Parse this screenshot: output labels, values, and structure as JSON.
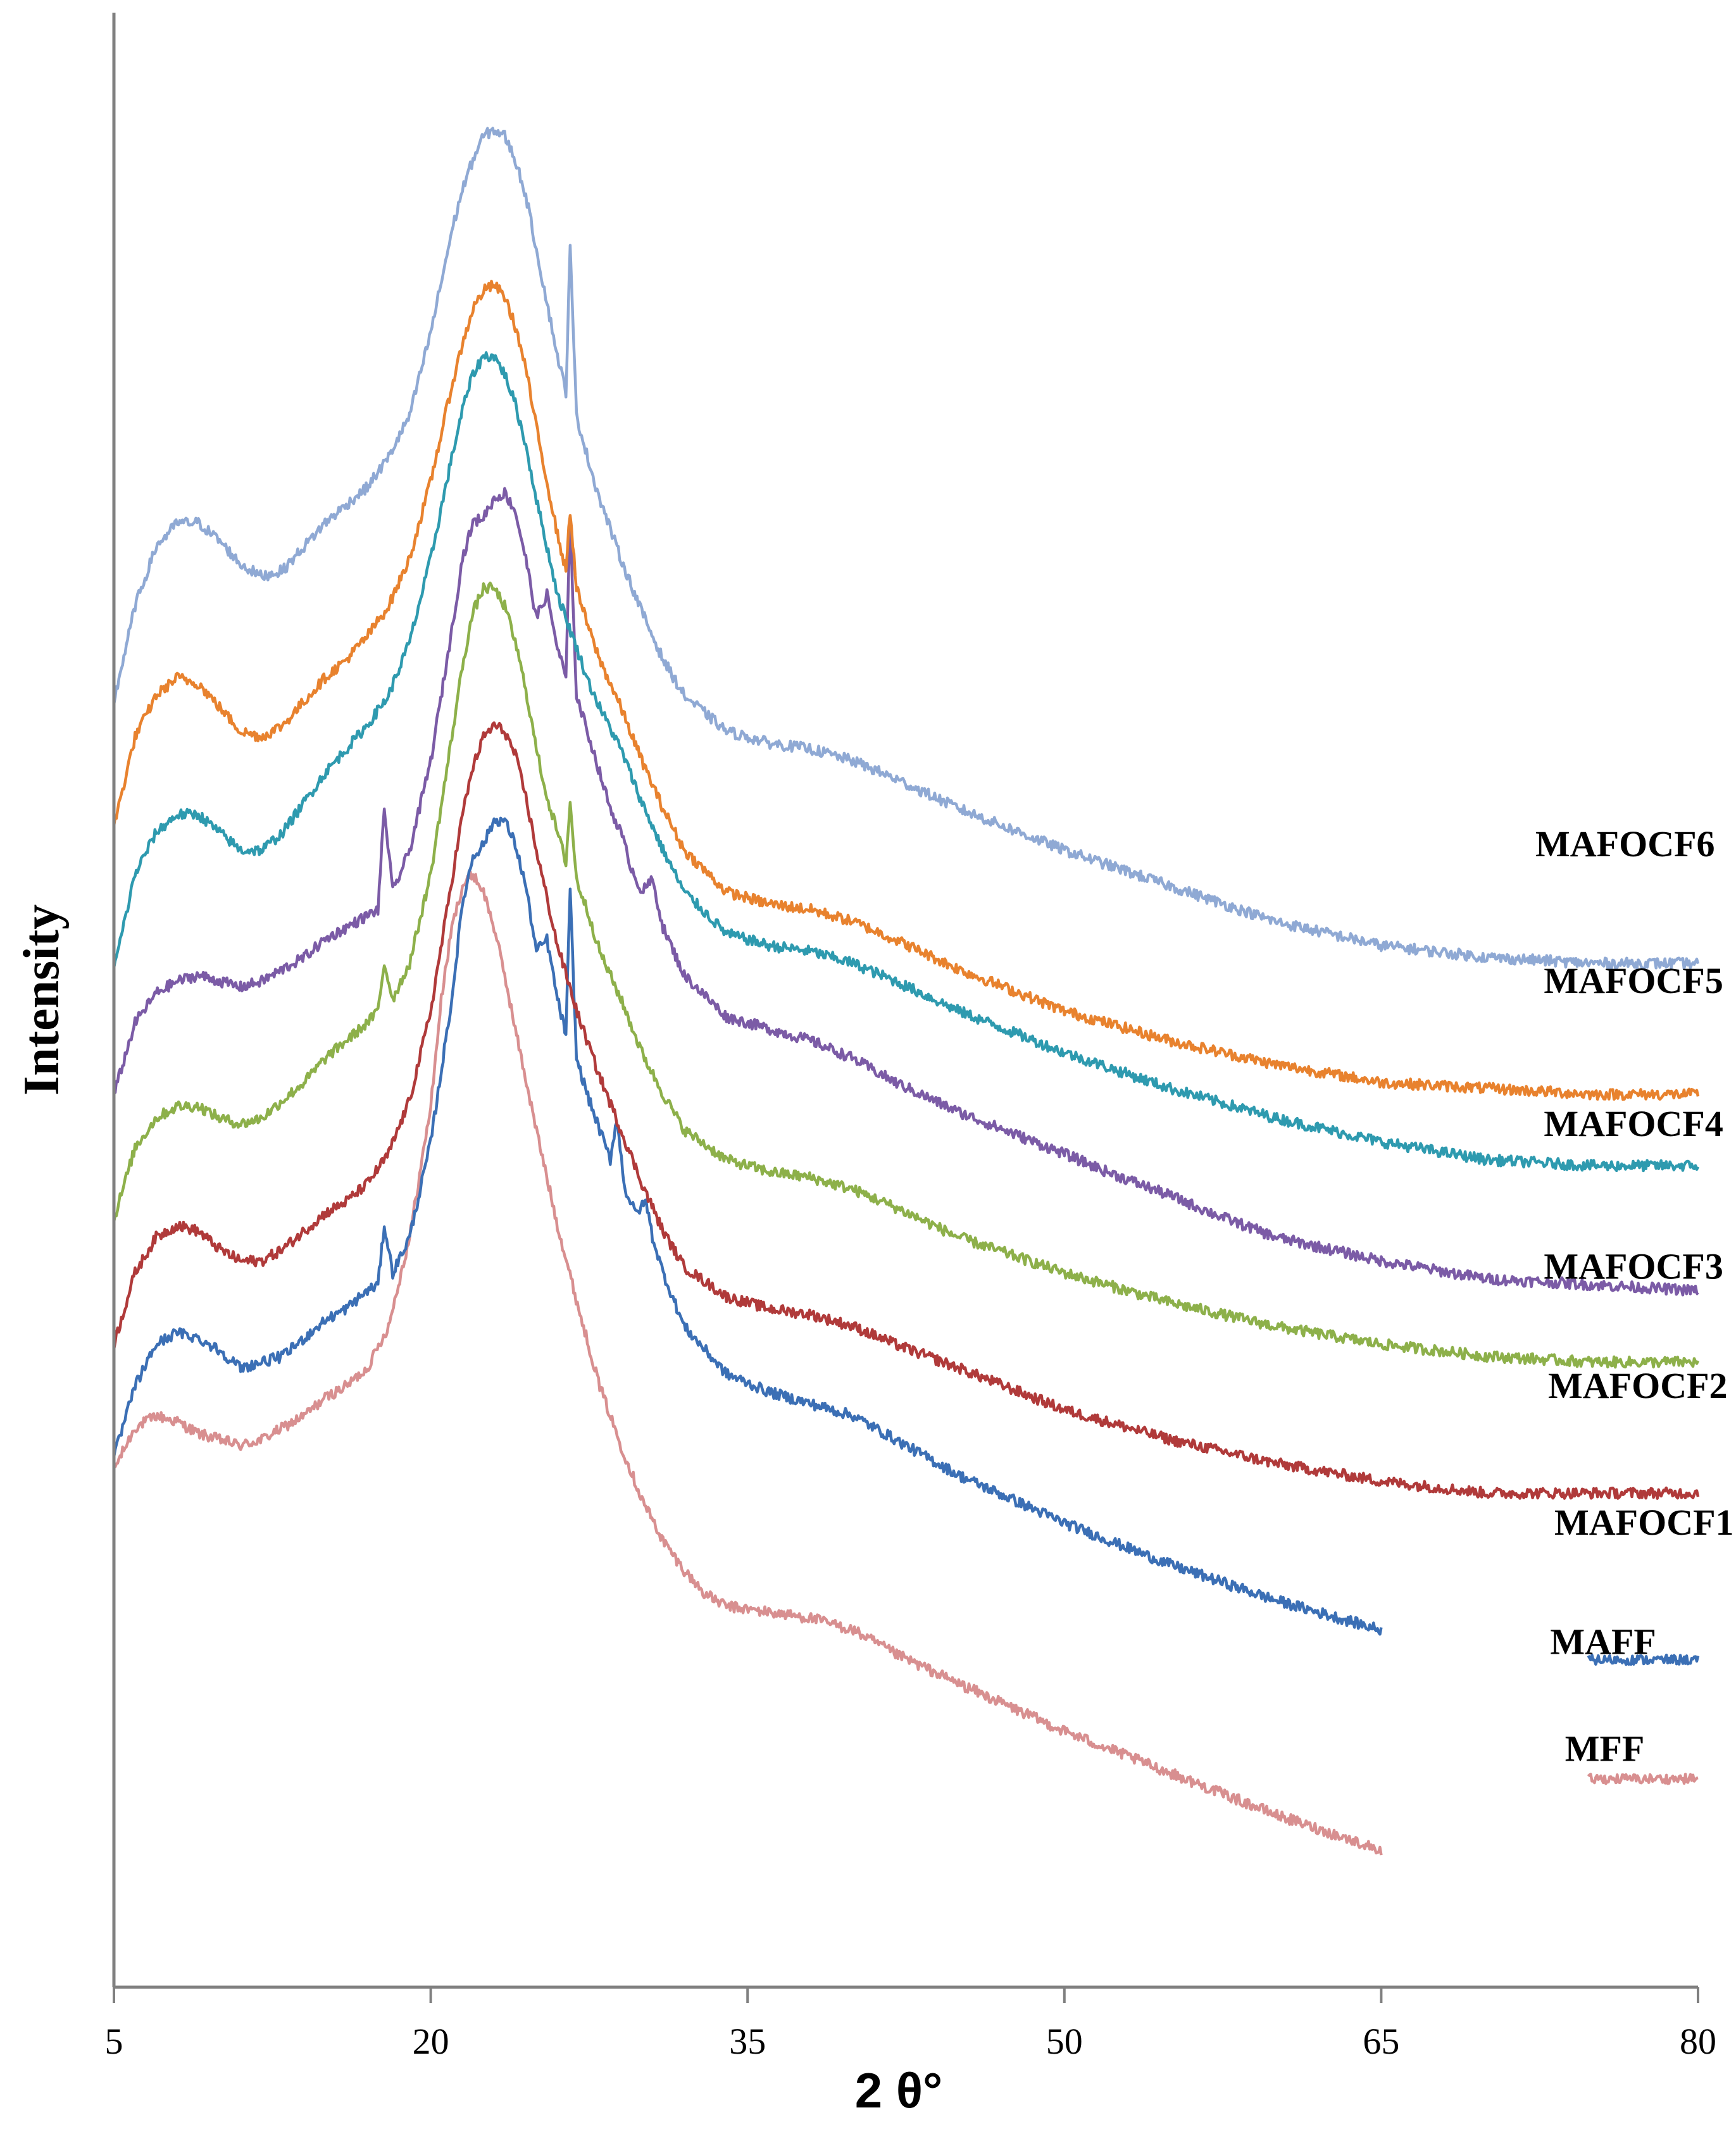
{
  "chart_data": {
    "type": "line",
    "title": "",
    "xlabel": "2 θ°",
    "ylabel": "Intensity",
    "xlim": [
      5,
      80
    ],
    "xticks": [
      "5",
      "20",
      "35",
      "50",
      "65",
      "80"
    ],
    "grid": false,
    "legend": "inline labels at right",
    "y_units": "arbitrary (stacked, offset traces)",
    "series": [
      {
        "name": "MAFOCF6",
        "color": "#8FA9D4",
        "x": [
          5,
          6,
          7,
          8,
          9,
          10,
          11,
          12,
          13,
          14,
          15,
          16,
          17,
          18,
          19,
          20,
          21,
          21.5,
          22,
          22.5,
          23,
          23.5,
          24,
          24.5,
          25,
          25.5,
          26,
          26.4,
          26.6,
          26.9,
          27.5,
          28,
          29,
          30,
          31,
          32,
          34,
          36,
          38,
          40,
          42,
          45,
          50,
          55,
          60,
          65,
          70,
          75,
          80
        ],
        "y": [
          6.8,
          7.6,
          8.1,
          8.3,
          8.3,
          8.15,
          7.95,
          7.85,
          7.9,
          8.1,
          8.3,
          8.45,
          8.6,
          8.85,
          9.2,
          9.9,
          10.75,
          11.1,
          11.35,
          11.55,
          11.6,
          11.55,
          11.35,
          11.05,
          10.6,
          10.15,
          9.7,
          9.4,
          10.6,
          9.2,
          8.8,
          8.5,
          8.0,
          7.55,
          7.15,
          6.85,
          6.55,
          6.45,
          6.4,
          6.3,
          6.15,
          5.9,
          5.55,
          5.25,
          4.95,
          4.75,
          4.65,
          4.6,
          4.6
        ]
      },
      {
        "name": "MAFOCF5",
        "color": "#E8822E",
        "x": [
          5,
          6,
          7,
          8,
          9,
          10,
          11,
          12,
          13,
          14,
          15,
          16,
          17,
          18,
          19,
          20,
          21,
          21.5,
          22,
          22.5,
          23,
          23.5,
          24,
          24.5,
          25,
          25.5,
          26,
          26.4,
          26.6,
          26.9,
          27.5,
          28,
          29,
          30,
          31,
          32,
          34,
          36,
          38,
          40,
          42,
          45,
          50,
          55,
          60,
          65,
          70,
          75,
          80
        ],
        "y": [
          5.75,
          6.5,
          6.85,
          7.0,
          6.95,
          6.75,
          6.55,
          6.5,
          6.6,
          6.8,
          7.0,
          7.15,
          7.35,
          7.6,
          8.0,
          8.65,
          9.45,
          9.8,
          10.1,
          10.25,
          10.3,
          10.2,
          9.95,
          9.6,
          9.1,
          8.65,
          8.2,
          7.9,
          8.4,
          7.75,
          7.4,
          7.15,
          6.75,
          6.3,
          5.9,
          5.55,
          5.2,
          5.1,
          5.05,
          4.95,
          4.8,
          4.55,
          4.2,
          3.95,
          3.75,
          3.6,
          3.55,
          3.5,
          3.5
        ]
      },
      {
        "name": "MAFOCF4",
        "color": "#2E9AAF",
        "x": [
          5,
          6,
          7,
          8,
          9,
          10,
          11,
          12,
          13,
          14,
          15,
          16,
          17,
          18,
          19,
          20,
          21,
          21.5,
          22,
          22.5,
          23,
          23.5,
          24,
          24.5,
          25,
          25.5,
          26,
          26.5,
          27,
          27.5,
          28,
          29,
          30,
          31,
          32,
          34,
          36,
          38,
          40,
          42,
          45,
          50,
          55,
          60,
          65,
          70,
          75,
          80
        ],
        "y": [
          4.55,
          5.35,
          5.7,
          5.85,
          5.85,
          5.7,
          5.55,
          5.55,
          5.7,
          5.95,
          6.2,
          6.4,
          6.6,
          6.85,
          7.3,
          8.0,
          8.85,
          9.25,
          9.55,
          9.7,
          9.7,
          9.55,
          9.3,
          8.95,
          8.5,
          8.1,
          7.7,
          7.45,
          7.2,
          6.95,
          6.75,
          6.4,
          5.95,
          5.55,
          5.2,
          4.85,
          4.75,
          4.7,
          4.6,
          4.45,
          4.2,
          3.85,
          3.55,
          3.3,
          3.1,
          2.95,
          2.9,
          2.9
        ]
      },
      {
        "name": "MAFOCF3",
        "color": "#7B5BA6",
        "x": [
          5,
          6,
          7,
          8,
          9,
          10,
          11,
          12,
          13,
          14,
          15,
          16,
          17,
          17.5,
          17.8,
          18.2,
          19,
          20,
          21,
          21.5,
          22,
          22.5,
          23,
          23.5,
          24,
          24.5,
          25,
          25.5,
          26,
          26.4,
          26.6,
          26.9,
          27.5,
          28,
          28.5,
          29,
          29.5,
          30,
          30.5,
          31,
          32,
          34,
          36,
          38,
          40,
          42,
          45,
          50,
          52,
          55,
          57,
          60,
          65,
          70,
          75,
          80
        ],
        "y": [
          3.5,
          4.1,
          4.35,
          4.45,
          4.5,
          4.45,
          4.4,
          4.45,
          4.55,
          4.65,
          4.8,
          4.9,
          5.0,
          5.05,
          5.9,
          5.2,
          5.55,
          6.3,
          7.4,
          8.0,
          8.3,
          8.35,
          8.5,
          8.55,
          8.4,
          8.0,
          7.5,
          7.7,
          7.25,
          7.0,
          8.3,
          6.85,
          6.5,
          6.2,
          5.9,
          5.7,
          5.4,
          5.2,
          5.3,
          4.9,
          4.5,
          4.15,
          4.05,
          3.95,
          3.8,
          3.6,
          3.35,
          3.0,
          2.85,
          2.65,
          2.5,
          2.3,
          2.1,
          1.95,
          1.9,
          1.85
        ]
      },
      {
        "name": "MAFOCF2",
        "color": "#8DB04A",
        "x": [
          5,
          6,
          7,
          8,
          9,
          10,
          11,
          12,
          13,
          14,
          15,
          16,
          17,
          17.5,
          17.8,
          18.2,
          19,
          20,
          21,
          21.5,
          22,
          22.5,
          23,
          23.5,
          24,
          24.5,
          25,
          25.5,
          26,
          26.4,
          26.6,
          26.9,
          27.5,
          28,
          29,
          30,
          31,
          32,
          34,
          36,
          38,
          40,
          42,
          45,
          50,
          55,
          60,
          65,
          70,
          75,
          80
        ],
        "y": [
          2.45,
          3.05,
          3.3,
          3.4,
          3.4,
          3.3,
          3.25,
          3.3,
          3.45,
          3.6,
          3.8,
          3.95,
          4.1,
          4.2,
          4.6,
          4.3,
          4.6,
          5.35,
          6.5,
          7.1,
          7.55,
          7.75,
          7.75,
          7.6,
          7.3,
          6.9,
          6.4,
          6.0,
          5.7,
          5.45,
          5.95,
          5.3,
          5.0,
          4.7,
          4.3,
          3.85,
          3.5,
          3.2,
          2.95,
          2.85,
          2.8,
          2.7,
          2.55,
          2.3,
          2.0,
          1.75,
          1.55,
          1.4,
          1.3,
          1.25,
          1.25
        ]
      },
      {
        "name": "MAFOCF1",
        "color": "#B03A3A",
        "x": [
          5,
          6,
          7,
          8,
          9,
          10,
          11,
          12,
          13,
          14,
          15,
          16,
          17,
          18,
          19,
          20,
          21,
          21.5,
          22,
          22.5,
          23,
          23.5,
          24,
          24.5,
          25,
          25.5,
          26,
          26.5,
          27,
          27.5,
          28,
          29,
          30,
          31,
          32,
          34,
          36,
          38,
          40,
          42,
          45,
          50,
          55,
          60,
          65,
          70,
          75,
          80
        ],
        "y": [
          1.4,
          2.0,
          2.3,
          2.4,
          2.35,
          2.2,
          2.1,
          2.1,
          2.2,
          2.35,
          2.5,
          2.6,
          2.75,
          3.0,
          3.45,
          4.2,
          5.3,
          5.85,
          6.25,
          6.5,
          6.6,
          6.55,
          6.35,
          6.0,
          5.55,
          5.15,
          4.75,
          4.45,
          4.15,
          3.9,
          3.65,
          3.2,
          2.75,
          2.35,
          2.05,
          1.8,
          1.7,
          1.65,
          1.55,
          1.4,
          1.2,
          0.85,
          0.6,
          0.4,
          0.25,
          0.15,
          0.15,
          0.15
        ]
      },
      {
        "name": "MAFF",
        "color": "#3B6FB5",
        "x": [
          5,
          6,
          7,
          8,
          9,
          10,
          11,
          12,
          13,
          14,
          15,
          16,
          17,
          17.5,
          17.8,
          18.2,
          19,
          20,
          21,
          21.5,
          22,
          22.5,
          23,
          23.5,
          24,
          24.5,
          25,
          25.5,
          26,
          26.4,
          26.6,
          26.9,
          27.5,
          28,
          28.5,
          28.8,
          29.2,
          29.7,
          30.2,
          30.5,
          31,
          32,
          34,
          36,
          38,
          40,
          42,
          45,
          50,
          55,
          60,
          65
        ],
        "y": [
          0.45,
          1.05,
          1.4,
          1.5,
          1.45,
          1.35,
          1.2,
          1.25,
          1.3,
          1.45,
          1.6,
          1.7,
          1.85,
          1.9,
          2.4,
          2.0,
          2.3,
          3.1,
          4.3,
          5.1,
          5.5,
          5.6,
          5.8,
          5.8,
          5.6,
          5.25,
          4.7,
          4.8,
          4.3,
          4.0,
          5.2,
          3.8,
          3.45,
          3.2,
          2.95,
          3.3,
          2.7,
          2.5,
          2.6,
          2.3,
          2.0,
          1.55,
          1.15,
          1.0,
          0.9,
          0.8,
          0.6,
          0.3,
          -0.1,
          -0.45,
          -0.75,
          -1.0
        ]
      },
      {
        "name": "MFF",
        "color": "#D88F90",
        "x": [
          5,
          6,
          7,
          8,
          9,
          10,
          11,
          12,
          13,
          14,
          15,
          16,
          17,
          18,
          19,
          20,
          20.5,
          21,
          21.5,
          22,
          22.5,
          23,
          23.5,
          24,
          25,
          26,
          27,
          28,
          29,
          30,
          31,
          32,
          33,
          34,
          36,
          38,
          40,
          42,
          45,
          50,
          55,
          60,
          65
        ],
        "y": [
          0.35,
          0.7,
          0.8,
          0.75,
          0.65,
          0.6,
          0.55,
          0.6,
          0.7,
          0.8,
          0.95,
          1.05,
          1.2,
          1.55,
          2.3,
          3.4,
          4.3,
          4.9,
          5.25,
          5.35,
          5.2,
          4.9,
          4.5,
          4.05,
          3.2,
          2.4,
          1.7,
          1.05,
          0.55,
          0.1,
          -0.25,
          -0.5,
          -0.7,
          -0.8,
          -0.85,
          -0.9,
          -1.0,
          -1.2,
          -1.45,
          -1.85,
          -2.2,
          -2.55,
          -2.85
        ]
      }
    ],
    "series_end_marks": [
      {
        "name": "MAFF",
        "x": [
          79.8,
          80
        ],
        "y": [
          -1.25,
          -1.25
        ]
      },
      {
        "name": "MFF",
        "x": [
          79.8,
          80
        ],
        "y": [
          -2.25,
          -2.25
        ]
      }
    ],
    "labels": [
      {
        "text": "MAFOCF6",
        "x": 72.3,
        "y": 5.5
      },
      {
        "text": "MAFOCF5",
        "x": 72.7,
        "y": 4.35
      },
      {
        "text": "MAFOCF4",
        "x": 72.7,
        "y": 3.15
      },
      {
        "text": "MAFOCF3",
        "x": 72.7,
        "y": 1.95
      },
      {
        "text": "MAFOCF2",
        "x": 72.9,
        "y": 0.95
      },
      {
        "text": "MAFOCF1",
        "x": 73.2,
        "y": -0.2
      },
      {
        "text": "MAFF",
        "x": 73.0,
        "y": -1.2
      },
      {
        "text": "MFF",
        "x": 73.7,
        "y": -2.1
      }
    ]
  }
}
